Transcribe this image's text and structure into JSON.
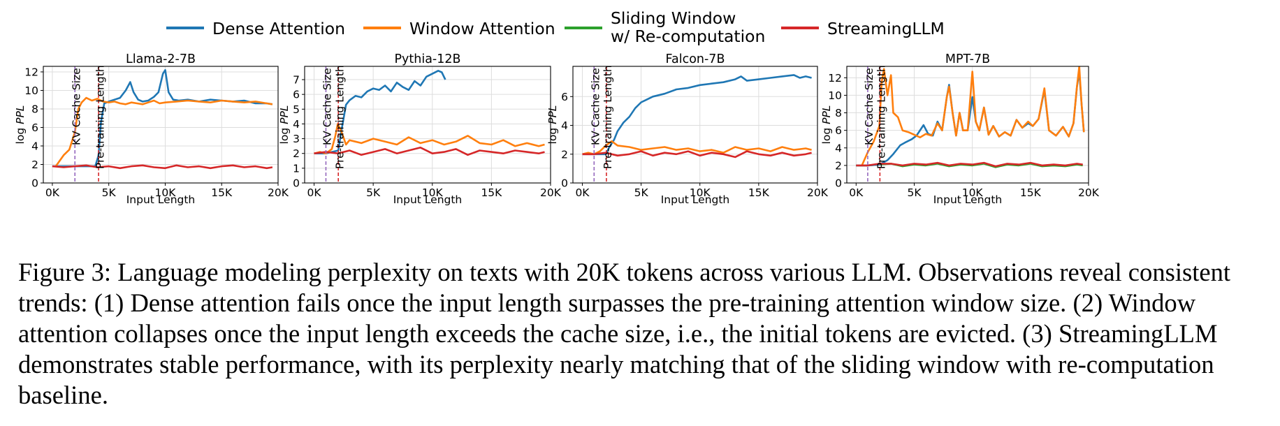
{
  "legend": [
    {
      "name": "Dense Attention",
      "color": "#1f77b4"
    },
    {
      "name": "Window Attention",
      "color": "#ff7f0e"
    },
    {
      "name": "Sliding Window\nw/ Re-computation",
      "color": "#2ca02c"
    },
    {
      "name": "StreamingLLM",
      "color": "#d62728"
    }
  ],
  "vline_labels": {
    "cache": "KV Cache Size",
    "pretrain": "Pre-training Length"
  },
  "vline_colors": {
    "cache": "#9467bd",
    "pretrain": "#d62728"
  },
  "caption": {
    "label": "Figure 3:",
    "text": "Language modeling perplexity on texts with 20K tokens across various LLM. Observations reveal consistent trends: (1) Dense attention fails once the input length surpasses the pre-training attention window size. (2) Window attention collapses once the input length exceeds the cache size, i.e., the initial tokens are evicted. (3) StreamingLLM demonstrates stable performance, with its perplexity nearly matching that of the sliding window with re-computation baseline."
  },
  "chart_data": [
    {
      "type": "line",
      "title": "Llama-2-7B",
      "xlabel": "Input Length",
      "ylabel": "log PPL",
      "xlim": [
        -800,
        20000
      ],
      "ylim": [
        0,
        12.6
      ],
      "xticks": [
        0,
        5000,
        10000,
        15000,
        20000
      ],
      "xtick_labels": [
        "0K",
        "5K",
        "10K",
        "15K",
        "20K"
      ],
      "yticks": [
        0,
        2,
        4,
        6,
        8,
        10,
        12
      ],
      "ytick_labels": [
        "0",
        "2",
        "4",
        "6",
        "8",
        "10",
        "12"
      ],
      "grid": true,
      "vlines": {
        "cache": 2000,
        "pretrain": 4096
      },
      "series": [
        {
          "name": "Dense Attention",
          "x": [
            0,
            1000,
            2000,
            3000,
            3800,
            4096,
            4300,
            4600,
            5000,
            5500,
            6000,
            6500,
            6900,
            7200,
            7600,
            8000,
            8500,
            9000,
            9400,
            9800,
            10000,
            10300,
            10700,
            11200,
            12000,
            13000,
            14000,
            15000,
            16000,
            17000,
            18000,
            19000,
            19500
          ],
          "y": [
            1.8,
            1.8,
            1.8,
            1.8,
            1.8,
            3.0,
            6.5,
            8.6,
            8.8,
            9.0,
            9.2,
            10.0,
            10.9,
            9.8,
            9.0,
            8.8,
            8.9,
            9.3,
            9.8,
            11.8,
            12.2,
            9.8,
            9.0,
            8.9,
            9.0,
            8.8,
            9.0,
            8.9,
            8.8,
            8.9,
            8.6,
            8.6,
            8.5
          ]
        },
        {
          "name": "Window Attention",
          "x": [
            300,
            1000,
            1500,
            2000,
            2300,
            2600,
            3000,
            3500,
            4000,
            4500,
            5000,
            5500,
            6000,
            6500,
            7000,
            7500,
            8000,
            8500,
            9000,
            9500,
            10000,
            11000,
            12000,
            13000,
            14000,
            15000,
            16000,
            17000,
            18000,
            19000,
            19500
          ],
          "y": [
            1.8,
            3.0,
            3.6,
            5.5,
            8.0,
            8.7,
            9.2,
            8.9,
            9.1,
            8.8,
            8.7,
            8.8,
            8.6,
            8.5,
            8.7,
            8.6,
            8.5,
            8.7,
            8.9,
            8.6,
            8.7,
            8.8,
            8.9,
            8.8,
            8.7,
            8.9,
            8.8,
            8.7,
            8.8,
            8.6,
            8.5
          ]
        },
        {
          "name": "StreamingLLM",
          "x": [
            0,
            1000,
            2000,
            3000,
            4000,
            5000,
            6000,
            7000,
            8000,
            9000,
            10000,
            11000,
            12000,
            13000,
            14000,
            15000,
            16000,
            17000,
            18000,
            19000,
            19500
          ],
          "y": [
            1.8,
            1.7,
            1.8,
            1.9,
            1.7,
            1.8,
            1.6,
            1.8,
            1.9,
            1.7,
            1.6,
            1.9,
            1.7,
            1.8,
            1.6,
            1.8,
            1.9,
            1.7,
            1.8,
            1.6,
            1.7
          ]
        }
      ]
    },
    {
      "type": "line",
      "title": "Pythia-12B",
      "xlabel": "Input Length",
      "ylabel": "log PPL",
      "xlim": [
        -800,
        20000
      ],
      "ylim": [
        0,
        7.9
      ],
      "xticks": [
        0,
        5000,
        10000,
        15000,
        20000
      ],
      "xtick_labels": [
        "0K",
        "5K",
        "10K",
        "15K",
        "20K"
      ],
      "yticks": [
        0,
        1,
        2,
        3,
        4,
        5,
        6,
        7
      ],
      "ytick_labels": [
        "0",
        "1",
        "2",
        "3",
        "4",
        "5",
        "6",
        "7"
      ],
      "grid": true,
      "vlines": {
        "cache": 1000,
        "pretrain": 2048
      },
      "series": [
        {
          "name": "Dense Attention",
          "x": [
            0,
            500,
            1000,
            1500,
            2048,
            2300,
            2700,
            3000,
            3500,
            4000,
            4500,
            5000,
            5500,
            6000,
            6500,
            7000,
            7500,
            8000,
            8500,
            9000,
            9500,
            10000,
            10500,
            10800,
            11100
          ],
          "y": [
            2.0,
            2.0,
            2.0,
            2.1,
            2.2,
            3.5,
            5.3,
            5.6,
            5.9,
            5.8,
            6.2,
            6.4,
            6.3,
            6.6,
            6.2,
            6.8,
            6.5,
            6.3,
            6.9,
            6.6,
            7.2,
            7.4,
            7.6,
            7.5,
            7.0
          ]
        },
        {
          "name": "Window Attention",
          "x": [
            0,
            500,
            1000,
            1500,
            1800,
            2000,
            2300,
            2700,
            3000,
            4000,
            5000,
            6000,
            7000,
            8000,
            9000,
            10000,
            11000,
            12000,
            13000,
            14000,
            15000,
            16000,
            17000,
            18000,
            19000,
            19500
          ],
          "y": [
            2.0,
            2.1,
            2.0,
            2.3,
            3.2,
            4.0,
            3.5,
            2.6,
            2.9,
            2.7,
            3.0,
            2.8,
            2.6,
            3.1,
            2.7,
            2.9,
            2.6,
            2.8,
            3.2,
            2.7,
            2.6,
            2.9,
            2.5,
            2.7,
            2.5,
            2.6
          ]
        },
        {
          "name": "StreamingLLM",
          "x": [
            0,
            1000,
            2000,
            3000,
            4000,
            5000,
            6000,
            7000,
            8000,
            9000,
            10000,
            11000,
            12000,
            13000,
            14000,
            15000,
            16000,
            17000,
            18000,
            19000,
            19500
          ],
          "y": [
            2.0,
            2.1,
            2.0,
            2.2,
            1.9,
            2.1,
            2.3,
            2.0,
            2.2,
            2.4,
            2.0,
            2.1,
            2.3,
            1.9,
            2.2,
            2.1,
            2.0,
            2.2,
            2.1,
            2.0,
            2.1
          ]
        }
      ]
    },
    {
      "type": "line",
      "title": "Falcon-7B",
      "xlabel": "Input Length",
      "ylabel": "log PPL",
      "xlim": [
        -800,
        20000
      ],
      "ylim": [
        0,
        8.1
      ],
      "xticks": [
        0,
        5000,
        10000,
        15000,
        20000
      ],
      "xtick_labels": [
        "0K",
        "5K",
        "10K",
        "15K",
        "20K"
      ],
      "yticks": [
        0,
        2,
        4,
        6
      ],
      "ytick_labels": [
        "0",
        "2",
        "4",
        "6"
      ],
      "grid": true,
      "vlines": {
        "cache": 1000,
        "pretrain": 2048
      },
      "series": [
        {
          "name": "Dense Attention",
          "x": [
            0,
            1000,
            2000,
            2300,
            2700,
            3000,
            3500,
            4000,
            4500,
            5000,
            5500,
            6000,
            7000,
            8000,
            9000,
            10000,
            11000,
            12000,
            13000,
            13500,
            14000,
            15000,
            16000,
            17000,
            18000,
            18500,
            19000,
            19500
          ],
          "y": [
            2.0,
            2.0,
            2.0,
            2.5,
            3.0,
            3.6,
            4.2,
            4.6,
            5.2,
            5.6,
            5.8,
            6.0,
            6.2,
            6.5,
            6.6,
            6.8,
            6.9,
            7.0,
            7.2,
            7.4,
            7.1,
            7.2,
            7.3,
            7.4,
            7.5,
            7.3,
            7.4,
            7.3
          ]
        },
        {
          "name": "Window Attention",
          "x": [
            0,
            500,
            1000,
            1500,
            2000,
            2500,
            3000,
            4000,
            5000,
            6000,
            7000,
            8000,
            9000,
            10000,
            11000,
            12000,
            13000,
            14000,
            15000,
            16000,
            17000,
            18000,
            19000,
            19500
          ],
          "y": [
            2.0,
            2.1,
            2.0,
            2.2,
            2.6,
            2.9,
            2.6,
            2.5,
            2.3,
            2.4,
            2.5,
            2.3,
            2.4,
            2.2,
            2.3,
            2.1,
            2.5,
            2.3,
            2.4,
            2.2,
            2.5,
            2.3,
            2.4,
            2.3
          ]
        },
        {
          "name": "StreamingLLM",
          "x": [
            0,
            1000,
            2000,
            3000,
            4000,
            5000,
            6000,
            7000,
            8000,
            9000,
            10000,
            11000,
            12000,
            13000,
            14000,
            15000,
            16000,
            17000,
            18000,
            19000,
            19500
          ],
          "y": [
            2.0,
            2.0,
            2.1,
            1.9,
            2.0,
            2.2,
            1.9,
            2.1,
            2.0,
            2.2,
            1.9,
            2.1,
            2.0,
            1.8,
            2.2,
            2.0,
            1.9,
            2.1,
            1.9,
            2.0,
            2.1
          ]
        }
      ]
    },
    {
      "type": "line",
      "title": "MPT-7B",
      "xlabel": "Input Length",
      "ylabel": "log PPL",
      "xlim": [
        -800,
        20000
      ],
      "ylim": [
        0,
        13.3
      ],
      "xticks": [
        0,
        5000,
        10000,
        15000,
        20000
      ],
      "xtick_labels": [
        "0K",
        "5K",
        "10K",
        "15K",
        "20K"
      ],
      "yticks": [
        0,
        2,
        4,
        6,
        8,
        10,
        12
      ],
      "ytick_labels": [
        "0",
        "2",
        "4",
        "6",
        "8",
        "10",
        "12"
      ],
      "grid": true,
      "vlines": {
        "cache": 1000,
        "pretrain": 2048
      },
      "series": [
        {
          "name": "Dense Attention",
          "x": [
            0,
            1000,
            2000,
            2300,
            2700,
            3200,
            3800,
            4200,
            4800,
            5200,
            5800,
            6200,
            6600,
            7000,
            7400,
            7800,
            8000,
            8300,
            8600,
            8900,
            9200,
            9600,
            10000,
            10300,
            10600,
            11000,
            11400,
            11800,
            12300,
            12800,
            13300,
            13800,
            14300,
            14800,
            15200,
            15700,
            16200,
            16600,
            17200,
            17800,
            18300,
            18700,
            19000,
            19200,
            19400,
            19600
          ],
          "y": [
            2.0,
            2.0,
            2.1,
            2.3,
            2.6,
            3.3,
            4.3,
            4.6,
            5.0,
            5.4,
            6.6,
            5.6,
            5.4,
            7.0,
            6.0,
            9.8,
            11.2,
            8.0,
            5.4,
            8.0,
            6.0,
            6.0,
            9.8,
            7.0,
            6.0,
            8.6,
            5.5,
            6.5,
            5.3,
            5.8,
            5.4,
            7.2,
            6.3,
            6.8,
            6.5,
            7.3,
            10.6,
            6.0,
            5.4,
            6.4,
            5.3,
            6.8,
            11.0,
            12.7,
            9.0,
            5.8
          ]
        },
        {
          "name": "Window Attention",
          "x": [
            500,
            1000,
            1500,
            2000,
            2200,
            2400,
            2700,
            3000,
            3200,
            3600,
            4000,
            4500,
            5000,
            5500,
            6000,
            6500,
            7000,
            7400,
            7800,
            8000,
            8300,
            8600,
            8900,
            9200,
            9600,
            10000,
            10300,
            10600,
            11000,
            11400,
            11800,
            12300,
            12800,
            13300,
            13800,
            14300,
            14800,
            15200,
            15700,
            16200,
            16600,
            17200,
            17800,
            18300,
            18700,
            19000,
            19200,
            19400,
            19600
          ],
          "y": [
            2.0,
            3.5,
            4.7,
            6.5,
            11.5,
            13.0,
            10.0,
            12.3,
            8.0,
            7.5,
            6.0,
            5.8,
            5.5,
            5.2,
            5.6,
            5.4,
            6.8,
            6.0,
            9.8,
            11.0,
            8.0,
            5.4,
            8.0,
            6.0,
            6.0,
            12.7,
            7.0,
            6.0,
            8.6,
            5.5,
            6.5,
            5.3,
            5.8,
            5.4,
            7.2,
            6.3,
            7.0,
            6.5,
            7.3,
            10.8,
            6.0,
            5.4,
            6.4,
            5.3,
            6.8,
            11.0,
            13.3,
            9.0,
            5.8
          ]
        },
        {
          "name": "Sliding Window\nw/ Re-computation",
          "x": [
            0,
            1000,
            2000,
            3000,
            4000,
            5000,
            6000,
            7000,
            8000,
            9000,
            10000,
            11000,
            12000,
            13000,
            14000,
            15000,
            16000,
            17000,
            18000,
            19000,
            19500
          ],
          "y": [
            2.0,
            2.0,
            2.1,
            2.2,
            1.9,
            2.1,
            2.0,
            2.2,
            1.9,
            2.1,
            2.0,
            2.2,
            1.8,
            2.1,
            2.0,
            2.2,
            1.9,
            2.0,
            1.9,
            2.1,
            2.0
          ]
        },
        {
          "name": "StreamingLLM",
          "x": [
            0,
            1000,
            2000,
            3000,
            4000,
            5000,
            6000,
            7000,
            8000,
            9000,
            10000,
            11000,
            12000,
            13000,
            14000,
            15000,
            16000,
            17000,
            18000,
            19000,
            19500
          ],
          "y": [
            2.0,
            2.0,
            2.2,
            2.2,
            2.0,
            2.2,
            2.1,
            2.3,
            2.0,
            2.2,
            2.1,
            2.3,
            1.9,
            2.2,
            2.1,
            2.3,
            2.0,
            2.1,
            2.0,
            2.2,
            2.1
          ]
        }
      ]
    }
  ]
}
